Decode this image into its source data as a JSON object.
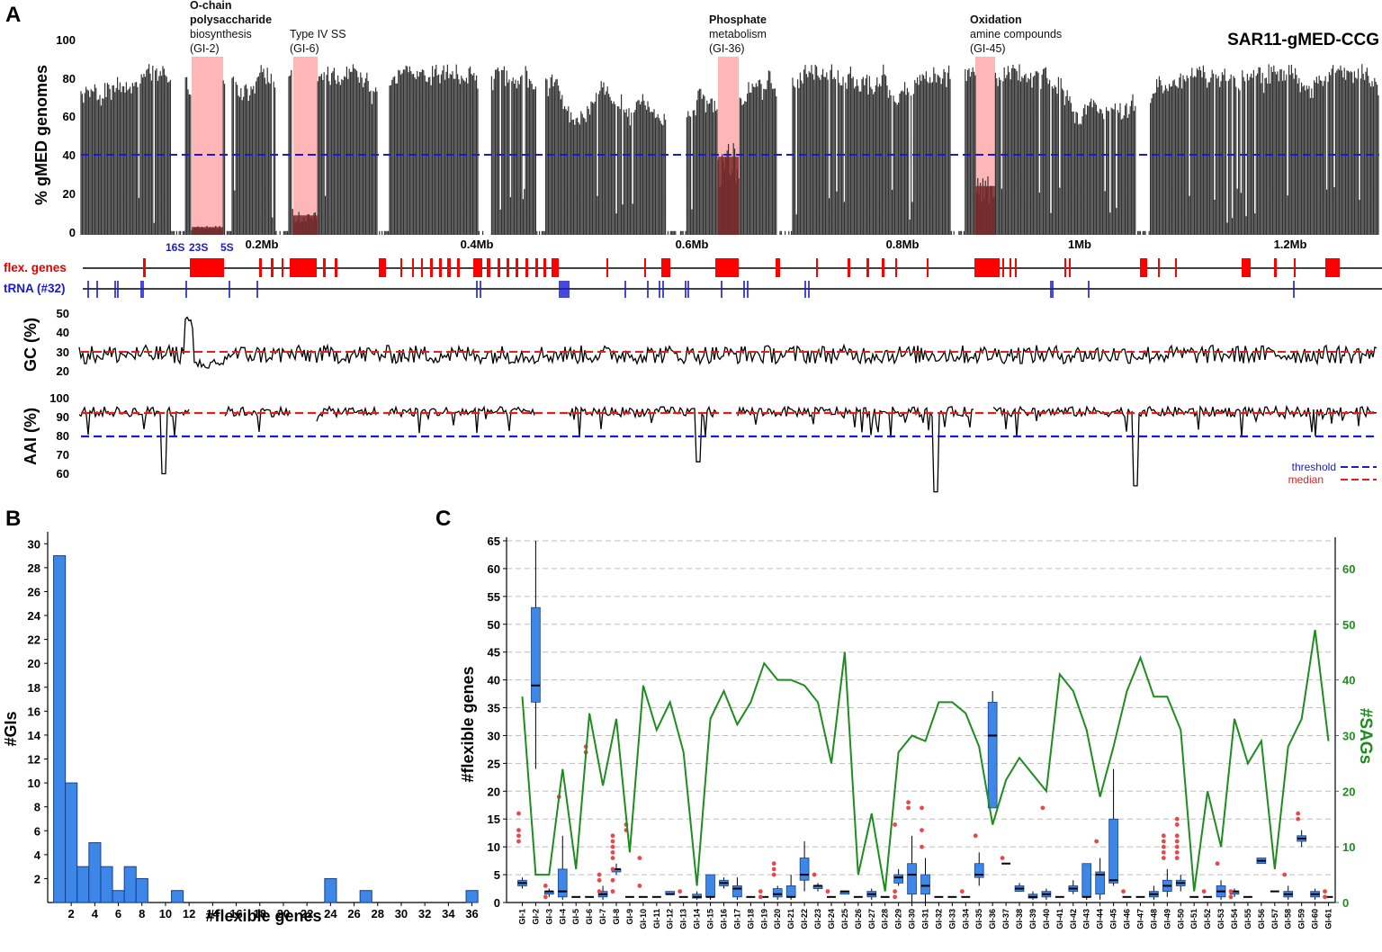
{
  "panels": {
    "A": {
      "letter": "A",
      "genome_label": "SAR11-gMED-CCG",
      "ylabel_coverage": "% gMED genomes",
      "coverage_ticks": [
        "100",
        "80",
        "60",
        "40",
        "20",
        "0"
      ],
      "position_ticks": [
        "0.2Mb",
        "0.4Mb",
        "0.6Mb",
        "0.8Mb",
        "1Mb",
        "1.2Mb"
      ],
      "rrna_labels": [
        "16S",
        "23S",
        "5S"
      ],
      "track_flex_label": "flex. genes",
      "track_trna_label": "tRNA (#32)",
      "gc_label": "GC (%)",
      "gc_ticks": [
        "50",
        "40",
        "30",
        "20"
      ],
      "aai_label": "AAI (%)",
      "aai_ticks": [
        "100",
        "90",
        "80",
        "70",
        "60"
      ],
      "legend_threshold": "threshold",
      "legend_median": "median",
      "annotations": [
        {
          "l1": "O-chain",
          "l2": "polysaccharide",
          "l3": "biosynthesis",
          "l4": "(GI-2)"
        },
        {
          "l1": "Type IV SS",
          "l2": "(GI-6)"
        },
        {
          "l1": "Phosphate",
          "l2": "metabolism",
          "l3": "(GI-36)"
        },
        {
          "l1": "Oxidation",
          "l2": "amine compounds",
          "l3": "(GI-45)"
        }
      ],
      "colors": {
        "bars": "#333333",
        "highlight": "#ffb6b6",
        "flex": "#ff0000",
        "trna": "#1a1ad0",
        "threshold": "#1a1ad0",
        "median": "#e0201a"
      }
    },
    "B": {
      "letter": "B",
      "xlabel": "#flexible genes",
      "ylabel": "#GIs",
      "xticks": [
        "2",
        "4",
        "6",
        "8",
        "10",
        "12",
        "14",
        "16",
        "18",
        "20",
        "22",
        "24",
        "26",
        "28",
        "30",
        "32",
        "34",
        "36"
      ],
      "yticks": [
        "2",
        "4",
        "6",
        "8",
        "10",
        "12",
        "14",
        "16",
        "18",
        "20",
        "22",
        "24",
        "26",
        "28",
        "30"
      ]
    },
    "C": {
      "letter": "C",
      "ylabel_left": "#flexible genes",
      "ylabel_right": "#SAGs",
      "yticks_left": [
        "0",
        "5",
        "10",
        "15",
        "20",
        "25",
        "30",
        "35",
        "40",
        "45",
        "50",
        "55",
        "60",
        "65"
      ],
      "yticks_right": [
        "0",
        "10",
        "20",
        "30",
        "40",
        "50",
        "60"
      ]
    }
  },
  "chart_data": [
    {
      "type": "area",
      "panel": "A",
      "ylabel": "% gMED genomes",
      "ylim": [
        0,
        100
      ],
      "xlim_mb": [
        0,
        1.29
      ],
      "threshold_percent": 40,
      "highlighted_regions_mb": [
        [
          0.116,
          0.15
        ],
        [
          0.216,
          0.241
        ],
        [
          0.616,
          0.637
        ],
        [
          0.88,
          0.911
        ]
      ],
      "regions": [
        "GI-2",
        "GI-6",
        "GI-36",
        "GI-45"
      ]
    },
    {
      "type": "line",
      "panel": "A-GC",
      "ylabel": "GC (%)",
      "ylim": [
        20,
        50
      ],
      "median": 30
    },
    {
      "type": "line",
      "panel": "A-AAI",
      "ylabel": "AAI (%)",
      "ylim": [
        55,
        100
      ],
      "median": 92,
      "threshold": 80
    },
    {
      "type": "bar",
      "panel": "B",
      "xlabel": "#flexible genes",
      "ylabel": "#GIs",
      "x": [
        1,
        2,
        3,
        4,
        5,
        6,
        7,
        8,
        11,
        24,
        27,
        36
      ],
      "values": [
        29,
        10,
        3,
        5,
        3,
        1,
        3,
        2,
        1,
        2,
        1,
        1
      ],
      "ylim": [
        0,
        31
      ]
    },
    {
      "type": "line",
      "panel": "C",
      "ylabel": "#SAGs",
      "categories": [
        "GI-1",
        "GI-2",
        "GI-3",
        "GI-4",
        "GI-5",
        "GI-6",
        "GI-7",
        "GI-8",
        "GI-9",
        "GI-10",
        "GI-11",
        "GI-12",
        "GI-13",
        "GI-14",
        "GI-15",
        "GI-16",
        "GI-17",
        "GI-18",
        "GI-19",
        "GI-20",
        "GI-21",
        "GI-22",
        "GI-23",
        "GI-24",
        "GI-25",
        "GI-26",
        "GI-27",
        "GI-28",
        "GI-29",
        "GI-30",
        "GI-31",
        "GI-32",
        "GI-33",
        "GI-34",
        "GI-35",
        "GI-36",
        "GI-37",
        "GI-38",
        "GI-39",
        "GI-40",
        "GI-41",
        "GI-42",
        "GI-43",
        "GI-44",
        "GI-45",
        "GI-46",
        "GI-47",
        "GI-48",
        "GI-49",
        "GI-50",
        "GI-51",
        "GI-52",
        "GI-53",
        "GI-54",
        "GI-55",
        "GI-56",
        "GI-57",
        "GI-58",
        "GI-59",
        "GI-60",
        "GI-61"
      ],
      "values": [
        37,
        5,
        5,
        24,
        6,
        34,
        21,
        33,
        9,
        39,
        31,
        36,
        27,
        3,
        33,
        38,
        32,
        36,
        43,
        40,
        40,
        39,
        36,
        25,
        45,
        5,
        16,
        2,
        27,
        30,
        29,
        36,
        36,
        34,
        28,
        14,
        22,
        26,
        23,
        20,
        41,
        38,
        31,
        19,
        28,
        38,
        44,
        37,
        37,
        31,
        2,
        20,
        10,
        33,
        25,
        29,
        6,
        28,
        33,
        49,
        29
      ],
      "ylim": [
        0,
        65
      ]
    },
    {
      "type": "box",
      "panel": "C",
      "ylabel": "#flexible genes",
      "ylim": [
        0,
        65
      ],
      "categories": [
        "GI-1",
        "GI-2",
        "GI-3",
        "GI-4",
        "GI-5",
        "GI-6",
        "GI-7",
        "GI-8",
        "GI-9",
        "GI-10",
        "GI-11",
        "GI-12",
        "GI-13",
        "GI-14",
        "GI-15",
        "GI-16",
        "GI-17",
        "GI-18",
        "GI-19",
        "GI-20",
        "GI-21",
        "GI-22",
        "GI-23",
        "GI-24",
        "GI-25",
        "GI-26",
        "GI-27",
        "GI-28",
        "GI-29",
        "GI-30",
        "GI-31",
        "GI-32",
        "GI-33",
        "GI-34",
        "GI-35",
        "GI-36",
        "GI-37",
        "GI-38",
        "GI-39",
        "GI-40",
        "GI-41",
        "GI-42",
        "GI-43",
        "GI-44",
        "GI-45",
        "GI-46",
        "GI-47",
        "GI-48",
        "GI-49",
        "GI-50",
        "GI-51",
        "GI-52",
        "GI-53",
        "GI-54",
        "GI-55",
        "GI-56",
        "GI-57",
        "GI-58",
        "GI-59",
        "GI-60",
        "GI-61"
      ],
      "q1": [
        3,
        36,
        1.5,
        1,
        1,
        1,
        1,
        5.5,
        1,
        1,
        1,
        1.5,
        1,
        0.8,
        1,
        3,
        1,
        1,
        1,
        1,
        1,
        4,
        2.5,
        1,
        1.5,
        1,
        1,
        1,
        3.5,
        1.5,
        1.5,
        1,
        1,
        1,
        4.5,
        17,
        7,
        2,
        0.8,
        1,
        1,
        2,
        1,
        1.5,
        3.5,
        1,
        1,
        1,
        2,
        3,
        1,
        1,
        1,
        1.5,
        1,
        7,
        2,
        1,
        11,
        1,
        1
      ],
      "median": [
        3.5,
        39,
        2,
        2,
        1,
        1,
        1.5,
        6,
        1,
        1,
        1,
        1.5,
        1,
        1,
        1,
        3.5,
        2.5,
        1,
        1,
        1.5,
        1,
        5,
        3,
        1,
        2,
        1,
        1.5,
        1,
        4.5,
        5,
        3,
        1,
        1,
        1,
        5,
        30,
        7,
        2.5,
        1,
        1.5,
        1,
        2.5,
        1,
        5,
        4,
        1,
        1,
        1.5,
        3,
        3.5,
        1,
        1,
        2,
        2,
        1,
        7.5,
        2,
        1.5,
        11.5,
        1.5,
        1
      ],
      "q3": [
        4,
        53,
        2,
        6,
        1,
        1,
        2,
        6,
        1,
        1,
        1,
        2,
        1,
        1.5,
        5,
        4,
        3,
        1,
        1,
        2.5,
        3,
        8,
        3,
        1,
        2,
        1,
        2,
        1,
        5,
        7,
        5,
        1,
        1,
        1,
        7,
        36,
        7,
        3,
        1.5,
        2,
        1,
        3,
        7,
        5.5,
        15,
        1,
        1,
        2,
        4,
        4,
        1,
        1,
        3,
        2,
        1,
        8,
        2,
        2,
        12,
        2,
        1
      ],
      "low": [
        2.5,
        24,
        1,
        0.5,
        1,
        1,
        0.5,
        5,
        1,
        1,
        1,
        1.5,
        1,
        0.5,
        0.5,
        2.5,
        0.5,
        1,
        1,
        0.5,
        0.5,
        2,
        2,
        1,
        1.5,
        1,
        0.5,
        1,
        3,
        0,
        0,
        1,
        1,
        1,
        3,
        17,
        7,
        2,
        0.5,
        0.5,
        1,
        1.5,
        0.5,
        0.5,
        3,
        1,
        1,
        0.5,
        1,
        2,
        1,
        1,
        0.5,
        1,
        1,
        7,
        2,
        0.5,
        10,
        0.5,
        1
      ],
      "high": [
        4.5,
        65,
        2.5,
        12,
        1,
        1,
        3,
        7,
        1,
        1,
        1,
        2,
        1,
        2,
        5,
        4.5,
        4.5,
        1,
        1,
        3,
        5,
        11,
        3.5,
        1,
        2,
        1,
        2.5,
        1,
        6,
        12,
        8,
        1,
        1,
        1,
        9,
        38,
        7,
        3.5,
        2,
        2.5,
        1,
        4,
        7,
        8,
        24,
        1,
        1,
        3,
        6,
        5,
        1,
        1,
        4,
        2.5,
        1,
        8,
        2,
        3,
        13,
        2.5,
        1
      ],
      "outliers": [
        [
          1,
          11
        ],
        [
          1,
          12
        ],
        [
          1,
          13
        ],
        [
          1,
          16
        ],
        [
          3,
          1
        ],
        [
          3,
          3
        ],
        [
          4,
          19
        ],
        [
          6,
          27
        ],
        [
          6,
          28
        ],
        [
          7,
          2
        ],
        [
          7,
          4
        ],
        [
          7,
          5
        ],
        [
          8,
          2
        ],
        [
          8,
          4
        ],
        [
          8,
          6
        ],
        [
          8,
          8
        ],
        [
          8,
          9
        ],
        [
          8,
          10
        ],
        [
          8,
          11
        ],
        [
          8,
          12
        ],
        [
          9,
          13
        ],
        [
          9,
          14
        ],
        [
          10,
          3
        ],
        [
          10,
          8
        ],
        [
          13,
          2
        ],
        [
          19,
          1
        ],
        [
          19,
          2
        ],
        [
          20,
          5
        ],
        [
          20,
          6
        ],
        [
          20,
          7
        ],
        [
          23,
          5
        ],
        [
          24,
          2
        ],
        [
          29,
          2
        ],
        [
          29,
          1
        ],
        [
          29,
          14
        ],
        [
          30,
          17
        ],
        [
          30,
          18
        ],
        [
          31,
          10
        ],
        [
          31,
          13
        ],
        [
          31,
          17
        ],
        [
          34,
          2
        ],
        [
          35,
          12
        ],
        [
          37,
          8
        ],
        [
          40,
          17
        ],
        [
          44,
          11
        ],
        [
          46,
          2
        ],
        [
          49,
          8
        ],
        [
          49,
          9
        ],
        [
          49,
          10
        ],
        [
          49,
          11
        ],
        [
          49,
          12
        ],
        [
          50,
          8
        ],
        [
          50,
          9
        ],
        [
          50,
          10
        ],
        [
          50,
          11
        ],
        [
          50,
          12
        ],
        [
          50,
          14
        ],
        [
          50,
          15
        ],
        [
          52,
          2
        ],
        [
          53,
          7
        ],
        [
          54,
          2
        ],
        [
          54,
          1
        ],
        [
          58,
          5
        ],
        [
          59,
          15
        ],
        [
          59,
          16
        ],
        [
          61,
          1
        ],
        [
          61,
          2
        ]
      ]
    }
  ]
}
